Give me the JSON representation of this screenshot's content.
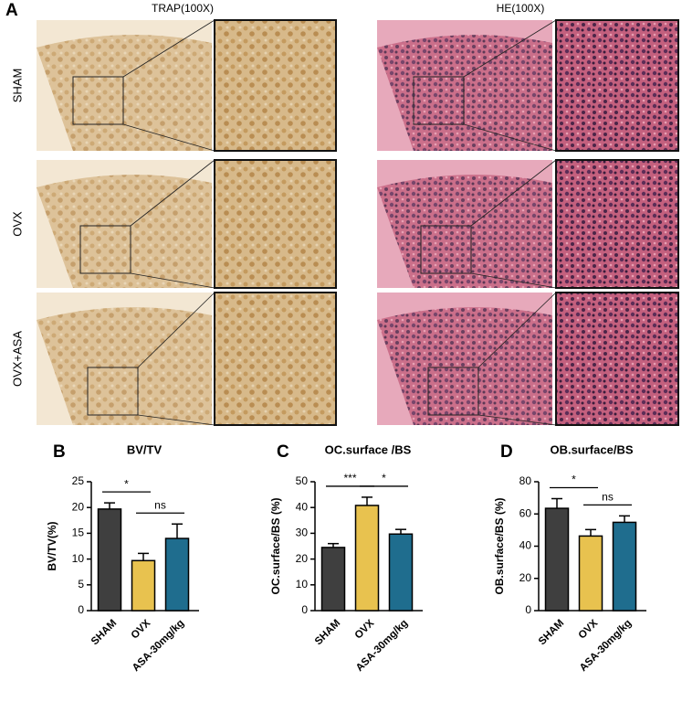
{
  "figure": {
    "panel_a": "A",
    "columns": [
      "TRAP(100X)",
      "HE(100X)"
    ],
    "rows": [
      "SHAM",
      "OVX",
      "OVX+ASA"
    ]
  },
  "chart_data": [
    {
      "type": "bar",
      "panel": "B",
      "title": "BV/TV",
      "ylabel": "BV/TV(%)",
      "categories": [
        "SHAM",
        "OVX",
        "ASA-30mg/kg"
      ],
      "values": [
        19.7,
        9.7,
        14
      ],
      "errors": [
        1.2,
        1.4,
        2.8
      ],
      "colors": [
        "#3f3f3f",
        "#e8c24f",
        "#1f6d8e"
      ],
      "ylim": [
        0,
        25
      ],
      "yticks": [
        0,
        5,
        10,
        15,
        20,
        25
      ],
      "annotations": [
        "*",
        "ns"
      ]
    },
    {
      "type": "bar",
      "panel": "C",
      "title": "OC.surface /BS",
      "ylabel": "OC.surface/BS (%)",
      "categories": [
        "SHAM",
        "OVX",
        "ASA-30mg/kg"
      ],
      "values": [
        24.5,
        40.8,
        29.7
      ],
      "errors": [
        1.5,
        3.2,
        1.8
      ],
      "colors": [
        "#3f3f3f",
        "#e8c24f",
        "#1f6d8e"
      ],
      "ylim": [
        0,
        50
      ],
      "yticks": [
        0,
        10,
        20,
        30,
        40,
        50
      ],
      "annotations": [
        "***",
        "*"
      ]
    },
    {
      "type": "bar",
      "panel": "D",
      "title": "OB.surface/BS",
      "ylabel": "OB.surface/BS (%)",
      "categories": [
        "SHAM",
        "OVX",
        "ASA-30mg/kg"
      ],
      "values": [
        63.5,
        46.3,
        54.8
      ],
      "errors": [
        6,
        4,
        4
      ],
      "colors": [
        "#3f3f3f",
        "#e8c24f",
        "#1f6d8e"
      ],
      "ylim": [
        0,
        80
      ],
      "yticks": [
        0,
        20,
        40,
        60,
        80
      ],
      "annotations": [
        "*",
        "ns"
      ]
    }
  ]
}
